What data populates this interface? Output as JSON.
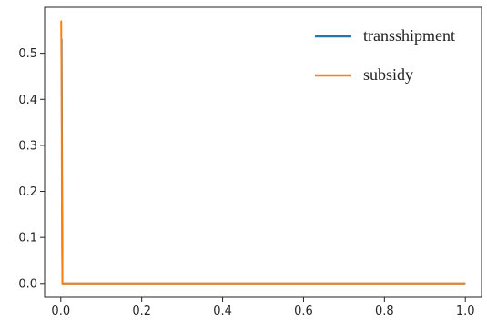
{
  "chart_data": {
    "type": "line",
    "title": "",
    "xlabel": "",
    "ylabel": "",
    "xlim": [
      -0.04,
      1.04
    ],
    "ylim": [
      -0.03,
      0.6
    ],
    "x_ticks": [
      "0.0",
      "0.2",
      "0.4",
      "0.6",
      "0.8",
      "1.0"
    ],
    "x_tick_values": [
      0,
      0.2,
      0.4,
      0.6,
      0.8,
      1.0
    ],
    "y_ticks": [
      "0.0",
      "0.1",
      "0.2",
      "0.3",
      "0.4",
      "0.5"
    ],
    "y_tick_values": [
      0,
      0.1,
      0.2,
      0.3,
      0.4,
      0.5
    ],
    "grid": false,
    "legend_position": "top-right",
    "series": [
      {
        "name": "transshipment",
        "color": "#1f77b4",
        "x": [
          0,
          0.002,
          0.004,
          1.0
        ],
        "y": [
          0.53,
          0.53,
          0.0,
          0.0
        ]
      },
      {
        "name": "subsidy",
        "color": "#ff7f0e",
        "x": [
          0,
          0.001,
          0.002,
          0.003,
          0.004,
          1.0
        ],
        "y": [
          0.57,
          0.57,
          0.43,
          0.1,
          0.0,
          0.0
        ]
      }
    ]
  }
}
